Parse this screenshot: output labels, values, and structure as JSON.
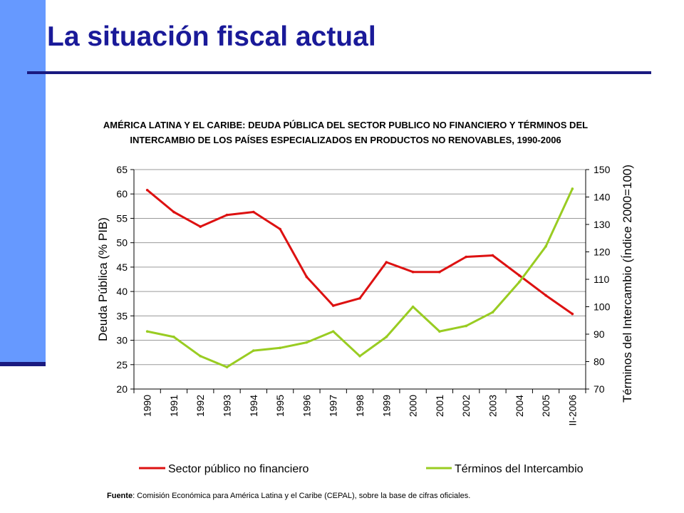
{
  "slide": {
    "title": "La situación fiscal actual",
    "source_label": "Fuente",
    "source_text": ": Comisión Económica para América Latina y el Caribe (CEPAL), sobre la base de cifras oficiales."
  },
  "chart_data": {
    "type": "line",
    "title": "AMÉRICA LATINA Y EL CARIBE: DEUDA PÚBLICA DEL SECTOR PUBLICO NO FINANCIERO Y TÉRMINOS DEL INTERCAMBIO DE LOS PAÍSES ESPECIALIZADOS EN PRODUCTOS NO RENOVABLES, 1990-2006",
    "categories": [
      "1990",
      "1991",
      "1992",
      "1993",
      "1994",
      "1995",
      "1996",
      "1997",
      "1998",
      "1999",
      "2000",
      "2001",
      "2002",
      "2003",
      "2004",
      "2005",
      "II-2006"
    ],
    "ylabel": "Deuda Pública (% PIB)",
    "y2label": "Términos del Intercambio (Índice 2000=100)",
    "ylim": [
      20,
      65
    ],
    "y2lim": [
      70,
      150
    ],
    "yticks": [
      20,
      25,
      30,
      35,
      40,
      45,
      50,
      55,
      60,
      65
    ],
    "y2ticks": [
      70,
      80,
      90,
      100,
      110,
      120,
      130,
      140,
      150
    ],
    "grid": true,
    "legend_position": "bottom",
    "series": [
      {
        "name": "Sector público no financiero",
        "axis": "left",
        "color": "#dd1111",
        "values": [
          60.8,
          56.3,
          53.3,
          55.7,
          56.3,
          52.8,
          43.0,
          37.1,
          38.6,
          46.0,
          44.0,
          44.0,
          47.1,
          47.4,
          43.3,
          39.2,
          35.4
        ]
      },
      {
        "name": "Términos del Intercambio",
        "axis": "right",
        "color": "#99cc22",
        "values": [
          91,
          89,
          82,
          78,
          84,
          85,
          87,
          91,
          82,
          89,
          100,
          91,
          93,
          98,
          109,
          122,
          143
        ]
      }
    ]
  }
}
